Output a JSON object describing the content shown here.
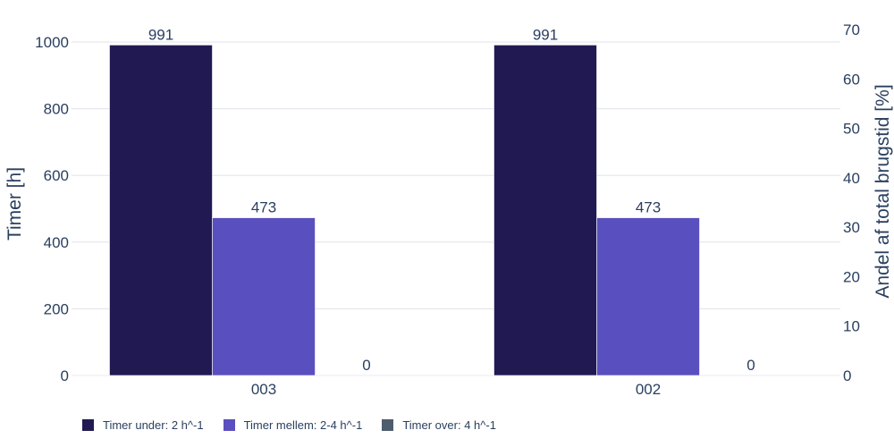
{
  "chart_data": {
    "type": "bar",
    "categories": [
      "003",
      "002"
    ],
    "series": [
      {
        "name": "Timer under: 2 h^-1",
        "values": [
          991,
          991
        ],
        "color": "#211a52"
      },
      {
        "name": "Timer mellem: 2-4 h^-1",
        "values": [
          473,
          473
        ],
        "color": "#5a4fbe"
      },
      {
        "name": "Timer over: 4 h^-1",
        "values": [
          0,
          0
        ],
        "color": "#4d5d6e"
      }
    ],
    "ylabel": "Timer [h]",
    "y2label": "Andel af total brugstid [%]",
    "ylim": [
      0,
      1000
    ],
    "y2lim": [
      0,
      70
    ],
    "yticks": [
      0,
      200,
      400,
      600,
      800,
      1000
    ],
    "y2ticks": [
      0,
      10,
      20,
      30,
      40,
      50,
      60,
      70
    ],
    "grid": true,
    "legend_position": "bottom-left",
    "bar_labels": true
  }
}
